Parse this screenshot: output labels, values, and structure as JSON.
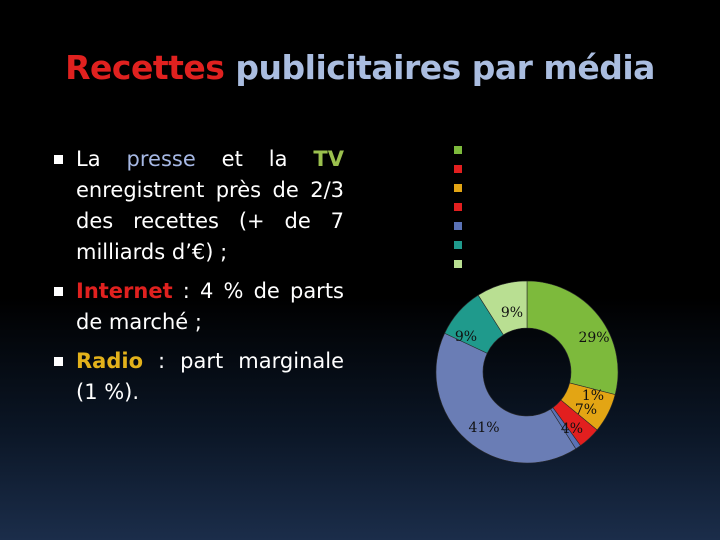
{
  "title": {
    "part1": "Recettes",
    "part2": "publicitaires par média"
  },
  "bullets": [
    {
      "segments": [
        {
          "text": "La ",
          "style": "plain"
        },
        {
          "text": "presse",
          "style": "presse"
        },
        {
          "text": " et la ",
          "style": "plain"
        },
        {
          "text": "TV",
          "style": "tv"
        },
        {
          "text": " enregistrent près de 2/3 des recettes (+ de 7 milliards d’€) ;",
          "style": "plain"
        }
      ]
    },
    {
      "segments": [
        {
          "text": "Internet",
          "style": "red"
        },
        {
          "text": " : 4 % de parts de marché ;",
          "style": "plain"
        }
      ]
    },
    {
      "segments": [
        {
          "text": "Radio",
          "style": "yellow"
        },
        {
          "text": " : part marginale (1 %).",
          "style": "plain"
        }
      ]
    }
  ],
  "chart_data": {
    "type": "pie",
    "style": "doughnut",
    "legend_position": "top",
    "series": [
      {
        "value_label": "29%",
        "value": 29,
        "color": "#7dba3c"
      },
      {
        "value_label": "7%",
        "value": 7,
        "color": "#e3a514"
      },
      {
        "value_label": "4%",
        "value": 4,
        "color": "#e21f1f"
      },
      {
        "value_label": "1%",
        "value": 1,
        "color": "#5a72b6"
      },
      {
        "value_label": "41%",
        "value": 41,
        "color": "#6a7db5"
      },
      {
        "value_label": "9%",
        "value": 9,
        "color": "#1f9a8c"
      },
      {
        "value_label": "9%",
        "value": 9,
        "color": "#b9df92"
      }
    ]
  }
}
